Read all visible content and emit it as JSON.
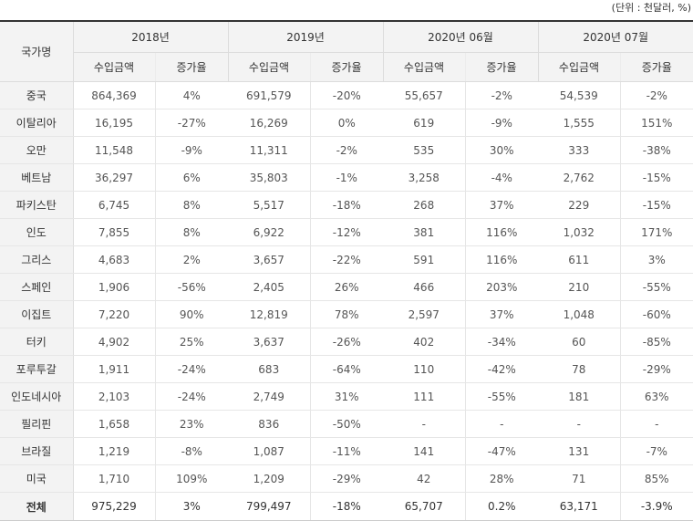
{
  "unit_note": "(단위 : 천달러, %)",
  "header": {
    "country": "국가명",
    "periods": [
      "2018년",
      "2019년",
      "2020년 06월",
      "2020년 07월"
    ],
    "sub": [
      "수입금액",
      "증가율"
    ]
  },
  "rows": [
    {
      "country": "중국",
      "v": [
        "864,369",
        "4%",
        "691,579",
        "-20%",
        "55,657",
        "-2%",
        "54,539",
        "-2%"
      ]
    },
    {
      "country": "이탈리아",
      "v": [
        "16,195",
        "-27%",
        "16,269",
        "0%",
        "619",
        "-9%",
        "1,555",
        "151%"
      ]
    },
    {
      "country": "오만",
      "v": [
        "11,548",
        "-9%",
        "11,311",
        "-2%",
        "535",
        "30%",
        "333",
        "-38%"
      ]
    },
    {
      "country": "베트남",
      "v": [
        "36,297",
        "6%",
        "35,803",
        "-1%",
        "3,258",
        "-4%",
        "2,762",
        "-15%"
      ]
    },
    {
      "country": "파키스탄",
      "v": [
        "6,745",
        "8%",
        "5,517",
        "-18%",
        "268",
        "37%",
        "229",
        "-15%"
      ]
    },
    {
      "country": "인도",
      "v": [
        "7,855",
        "8%",
        "6,922",
        "-12%",
        "381",
        "116%",
        "1,032",
        "171%"
      ]
    },
    {
      "country": "그리스",
      "v": [
        "4,683",
        "2%",
        "3,657",
        "-22%",
        "591",
        "116%",
        "611",
        "3%"
      ]
    },
    {
      "country": "스페인",
      "v": [
        "1,906",
        "-56%",
        "2,405",
        "26%",
        "466",
        "203%",
        "210",
        "-55%"
      ]
    },
    {
      "country": "이집트",
      "v": [
        "7,220",
        "90%",
        "12,819",
        "78%",
        "2,597",
        "37%",
        "1,048",
        "-60%"
      ]
    },
    {
      "country": "터키",
      "v": [
        "4,902",
        "25%",
        "3,637",
        "-26%",
        "402",
        "-34%",
        "60",
        "-85%"
      ]
    },
    {
      "country": "포루투갈",
      "v": [
        "1,911",
        "-24%",
        "683",
        "-64%",
        "110",
        "-42%",
        "78",
        "-29%"
      ]
    },
    {
      "country": "인도네시아",
      "v": [
        "2,103",
        "-24%",
        "2,749",
        "31%",
        "111",
        "-55%",
        "181",
        "63%"
      ]
    },
    {
      "country": "필리핀",
      "v": [
        "1,658",
        "23%",
        "836",
        "-50%",
        "-",
        "-",
        "-",
        "-"
      ]
    },
    {
      "country": "브라질",
      "v": [
        "1,219",
        "-8%",
        "1,087",
        "-11%",
        "141",
        "-47%",
        "131",
        "-7%"
      ]
    },
    {
      "country": "미국",
      "v": [
        "1,710",
        "109%",
        "1,209",
        "-29%",
        "42",
        "28%",
        "71",
        "85%"
      ]
    }
  ],
  "total": {
    "country": "전체",
    "v": [
      "975,229",
      "3%",
      "799,497",
      "-18%",
      "65,707",
      "0.2%",
      "63,171",
      "-3.9%"
    ]
  }
}
